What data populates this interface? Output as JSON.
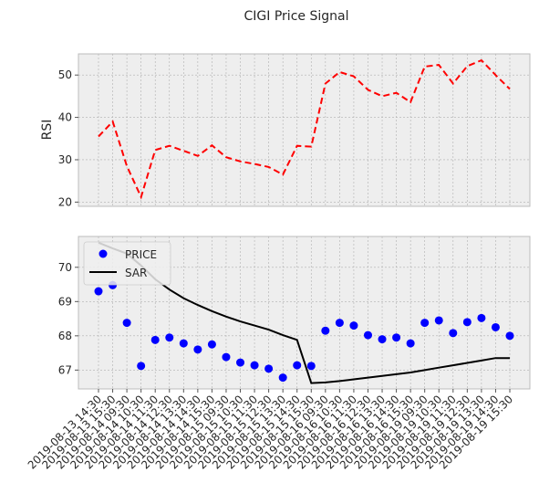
{
  "chart_data": [
    {
      "type": "line",
      "title": "CIGI Price Signal",
      "ylabel": "RSI",
      "ylim": [
        19,
        55
      ],
      "yticks": [
        20,
        30,
        40,
        50
      ],
      "grid": true,
      "line_style": "dashed",
      "colors": {
        "rsi": "#ff0000",
        "bg": "#eeeeee",
        "grid": "#b0b0b0"
      },
      "series": [
        {
          "values": [
            35.5,
            39,
            28.5,
            21.2,
            32.3,
            33.3,
            32.1,
            30.9,
            33.4,
            30.6,
            29.6,
            29.0,
            28.3,
            26.5,
            33.3,
            33.1,
            48.0,
            50.7,
            49.7,
            46.5,
            45.0,
            45.8,
            43.6,
            52.0,
            52.4,
            48.0,
            52.1,
            53.5,
            50.0,
            46.7
          ]
        }
      ]
    },
    {
      "type": "scatter",
      "ylim": [
        66.45,
        70.9
      ],
      "yticks": [
        67,
        68,
        69,
        70
      ],
      "grid": true,
      "legend": "top-left",
      "colors": {
        "price": "#0000ff",
        "sar": "#000000",
        "bg": "#eeeeee",
        "grid": "#b0b0b0"
      },
      "categories": [
        "2019-08-13 14:30",
        "2019-08-13 15:30",
        "2019-08-14 09:30",
        "2019-08-14 10:30",
        "2019-08-14 11:30",
        "2019-08-14 12:30",
        "2019-08-14 13:30",
        "2019-08-14 14:30",
        "2019-08-14 15:30",
        "2019-08-15 09:30",
        "2019-08-15 10:30",
        "2019-08-15 11:30",
        "2019-08-15 12:30",
        "2019-08-15 13:30",
        "2019-08-15 14:30",
        "2019-08-15 15:30",
        "2019-08-16 09:30",
        "2019-08-16 10:30",
        "2019-08-16 11:30",
        "2019-08-16 12:30",
        "2019-08-16 13:30",
        "2019-08-16 14:30",
        "2019-08-16 15:30",
        "2019-08-19 09:30",
        "2019-08-19 10:30",
        "2019-08-19 11:30",
        "2019-08-19 12:30",
        "2019-08-19 13:30",
        "2019-08-19 14:30",
        "2019-08-19 15:30"
      ],
      "series": [
        {
          "name": "PRICE",
          "values": [
            69.3,
            69.48,
            68.38,
            67.12,
            67.88,
            67.95,
            67.78,
            67.6,
            67.75,
            67.38,
            67.22,
            67.14,
            67.04,
            66.78,
            67.14,
            67.12,
            68.15,
            68.38,
            68.3,
            68.02,
            67.9,
            67.95,
            67.78,
            68.38,
            68.45,
            68.08,
            68.4,
            68.52,
            68.25,
            68.0
          ]
        },
        {
          "name": "SAR",
          "values": [
            70.72,
            70.55,
            70.4,
            70.05,
            69.65,
            69.35,
            69.1,
            68.9,
            68.72,
            68.56,
            68.42,
            68.3,
            68.18,
            68.02,
            67.88,
            66.62,
            66.64,
            66.68,
            66.73,
            66.78,
            66.83,
            66.88,
            66.93,
            67.0,
            67.07,
            67.14,
            67.21,
            67.28,
            67.35,
            67.35
          ]
        }
      ]
    }
  ]
}
